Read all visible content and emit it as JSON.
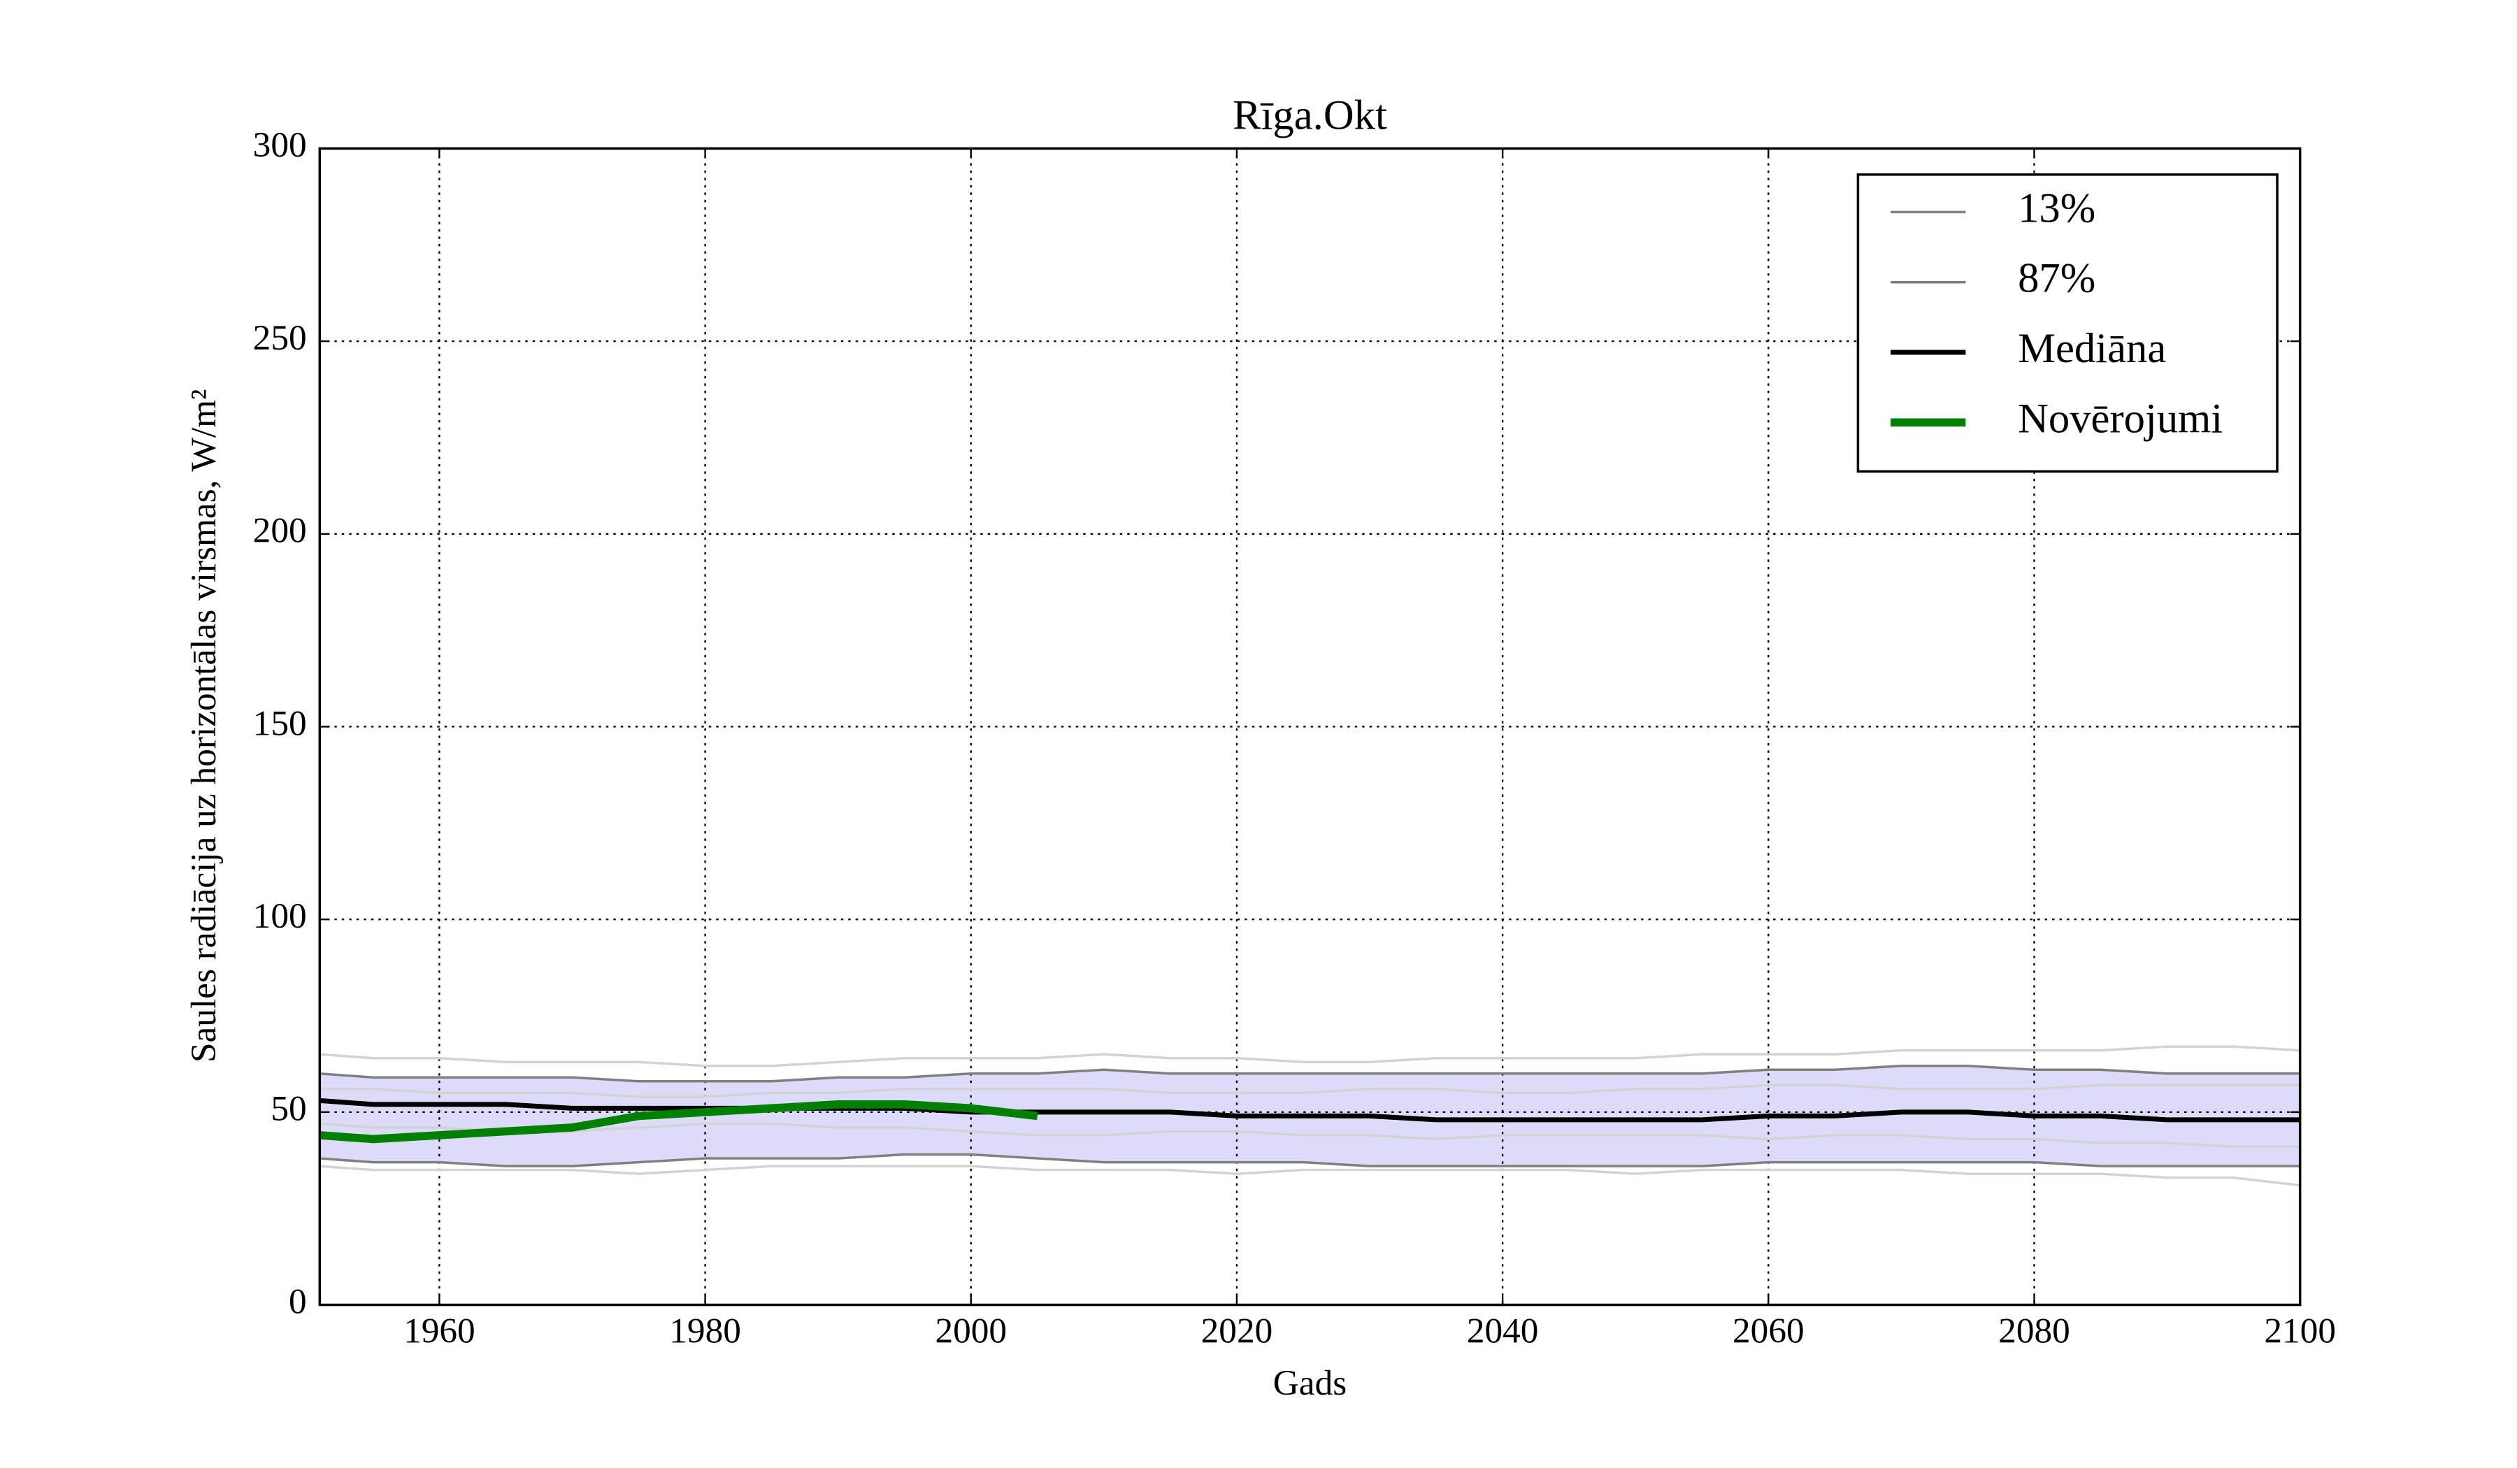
{
  "chart_data": {
    "type": "line",
    "title": "Rīga.Okt",
    "xlabel": "Gads",
    "ylabel": "Saules radiācija uz horizontālas virsmas, W/m²",
    "x": [
      1951,
      1955,
      1960,
      1965,
      1970,
      1975,
      1980,
      1985,
      1990,
      1995,
      2000,
      2005,
      2010,
      2015,
      2020,
      2025,
      2030,
      2035,
      2040,
      2045,
      2050,
      2055,
      2060,
      2065,
      2070,
      2075,
      2080,
      2085,
      2090,
      2095,
      2100
    ],
    "series": [
      {
        "name": "13%",
        "color": "#808080",
        "width": 1.5,
        "values": [
          38,
          37,
          37,
          36,
          36,
          37,
          38,
          38,
          38,
          39,
          39,
          38,
          37,
          37,
          37,
          37,
          36,
          36,
          36,
          36,
          36,
          36,
          37,
          37,
          37,
          37,
          37,
          36,
          36,
          36,
          36
        ]
      },
      {
        "name": "87%",
        "color": "#808080",
        "width": 1.5,
        "values": [
          60,
          59,
          59,
          59,
          59,
          58,
          58,
          58,
          59,
          59,
          60,
          60,
          61,
          60,
          60,
          60,
          60,
          60,
          60,
          60,
          60,
          60,
          61,
          61,
          62,
          62,
          61,
          61,
          60,
          60,
          60
        ]
      },
      {
        "name": "Mediāna",
        "color": "#000000",
        "width": 3,
        "values": [
          53,
          52,
          52,
          52,
          51,
          51,
          51,
          51,
          51,
          51,
          50,
          50,
          50,
          50,
          49,
          49,
          49,
          48,
          48,
          48,
          48,
          48,
          49,
          49,
          50,
          50,
          49,
          49,
          48,
          48,
          48
        ]
      },
      {
        "name": "Novērojumi",
        "color": "#008000",
        "width": 5,
        "values": [
          44,
          43,
          44,
          45,
          46,
          49,
          50,
          51,
          52,
          52,
          51,
          49,
          null,
          null,
          null,
          null,
          null,
          null,
          null,
          null,
          null,
          null,
          null,
          null,
          null,
          null,
          null,
          null,
          null,
          null,
          null
        ]
      }
    ],
    "ensemble": [
      {
        "color": "#d3d3d3",
        "values": [
          65,
          64,
          64,
          63,
          63,
          63,
          62,
          62,
          63,
          64,
          64,
          64,
          65,
          64,
          64,
          63,
          63,
          64,
          64,
          64,
          64,
          65,
          65,
          65,
          66,
          66,
          66,
          66,
          67,
          67,
          66
        ]
      },
      {
        "color": "#d3d3d3",
        "values": [
          47,
          46,
          46,
          45,
          45,
          46,
          47,
          47,
          46,
          46,
          45,
          44,
          44,
          45,
          45,
          44,
          44,
          43,
          44,
          44,
          44,
          44,
          43,
          44,
          44,
          43,
          43,
          42,
          42,
          41,
          41
        ]
      },
      {
        "color": "#d3d3d3",
        "values": [
          36,
          35,
          35,
          35,
          35,
          34,
          35,
          36,
          36,
          36,
          36,
          35,
          35,
          35,
          34,
          35,
          35,
          35,
          35,
          35,
          34,
          35,
          35,
          35,
          35,
          34,
          34,
          34,
          33,
          33,
          31
        ]
      },
      {
        "color": "#d3d3d3",
        "values": [
          56,
          56,
          55,
          55,
          55,
          54,
          54,
          55,
          55,
          56,
          56,
          56,
          56,
          55,
          55,
          55,
          56,
          56,
          55,
          55,
          56,
          56,
          57,
          57,
          56,
          56,
          56,
          57,
          57,
          57,
          57
        ]
      }
    ],
    "band_color": "#dcdcfa",
    "xlim": [
      1951,
      2100
    ],
    "xticks": [
      1960,
      1980,
      2000,
      2020,
      2040,
      2060,
      2080,
      2100
    ],
    "ylim": [
      0,
      300
    ],
    "yticks": [
      0,
      50,
      100,
      150,
      200,
      250,
      300
    ],
    "grid": true,
    "legend": "upper right"
  }
}
